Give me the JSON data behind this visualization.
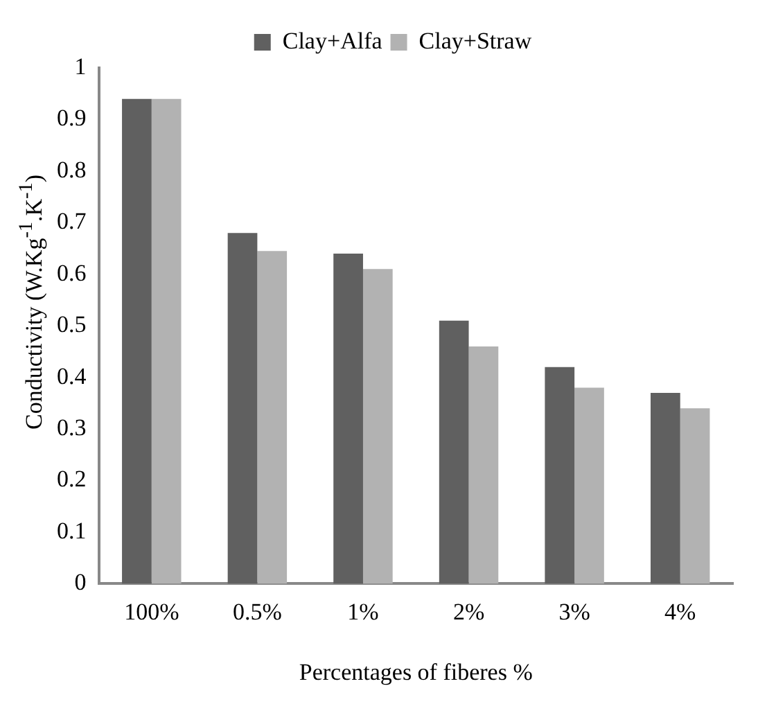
{
  "chart_data": {
    "type": "bar",
    "xlabel": "Percentages of fiberes %",
    "ylabel": "Conductivity (W.Kg$^{-1}$.K$^{-1}$)",
    "categories": [
      "100%",
      "0.5%",
      "1%",
      "2%",
      "3%",
      "4%"
    ],
    "series": [
      {
        "name": "Clay+Alfa",
        "color": "#606060",
        "values": [
          0.94,
          0.68,
          0.64,
          0.51,
          0.42,
          0.37
        ]
      },
      {
        "name": "Clay+Straw",
        "color": "#b2b2b2",
        "values": [
          0.94,
          0.645,
          0.61,
          0.46,
          0.38,
          0.34
        ]
      }
    ],
    "ylim": [
      0,
      1
    ],
    "yticks": [
      0,
      0.1,
      0.2,
      0.3,
      0.4,
      0.5,
      0.6,
      0.7,
      0.8,
      0.9,
      1
    ],
    "grid": false,
    "legend": "top"
  }
}
